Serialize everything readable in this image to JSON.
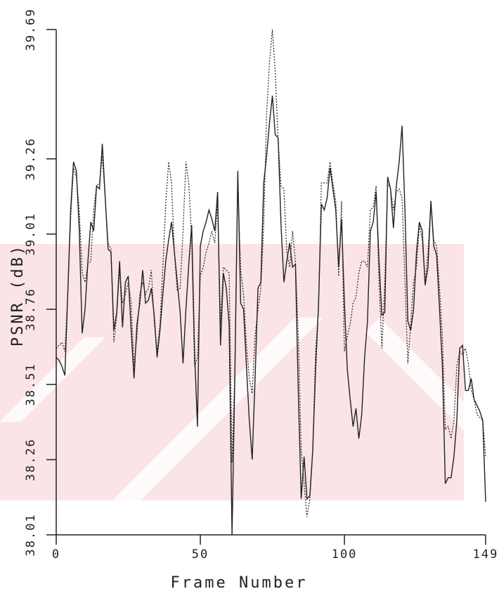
{
  "chart_data": {
    "type": "line",
    "xlabel": "Frame Number",
    "ylabel": "PSNR (dB)",
    "x": [
      0,
      1,
      2,
      3,
      4,
      5,
      6,
      7,
      8,
      9,
      10,
      11,
      12,
      13,
      14,
      15,
      16,
      17,
      18,
      19,
      20,
      21,
      22,
      23,
      24,
      25,
      26,
      27,
      28,
      29,
      30,
      31,
      32,
      33,
      34,
      35,
      36,
      37,
      38,
      39,
      40,
      41,
      42,
      43,
      44,
      45,
      46,
      47,
      48,
      49,
      50,
      51,
      52,
      53,
      54,
      55,
      56,
      57,
      58,
      59,
      60,
      61,
      62,
      63,
      64,
      65,
      66,
      67,
      68,
      69,
      70,
      71,
      72,
      73,
      74,
      75,
      76,
      77,
      78,
      79,
      80,
      81,
      82,
      83,
      84,
      85,
      86,
      87,
      88,
      89,
      90,
      91,
      92,
      93,
      94,
      95,
      96,
      97,
      98,
      99,
      100,
      101,
      102,
      103,
      104,
      105,
      106,
      107,
      108,
      109,
      110,
      111,
      112,
      113,
      114,
      115,
      116,
      117,
      118,
      119,
      120,
      121,
      122,
      123,
      124,
      125,
      126,
      127,
      128,
      129,
      130,
      131,
      132,
      133,
      134,
      135,
      136,
      137,
      138,
      139,
      140,
      141,
      142,
      143,
      144,
      145,
      146,
      147,
      148,
      149
    ],
    "series": [
      {
        "color": "#222222",
        "style": "solid",
        "values": [
          38.6,
          38.59,
          38.57,
          38.54,
          38.81,
          39.09,
          39.25,
          39.22,
          39.02,
          38.68,
          38.76,
          38.92,
          39.05,
          39.02,
          39.17,
          39.16,
          39.31,
          39.13,
          38.96,
          38.95,
          38.69,
          38.75,
          38.92,
          38.7,
          38.85,
          38.87,
          38.69,
          38.53,
          38.71,
          38.78,
          38.89,
          38.78,
          38.79,
          38.83,
          38.74,
          38.6,
          38.69,
          38.81,
          38.92,
          38.99,
          39.05,
          38.95,
          38.85,
          38.75,
          38.58,
          38.76,
          38.91,
          39.04,
          38.62,
          38.37,
          38.97,
          39.02,
          39.05,
          39.09,
          39.06,
          39.02,
          39.15,
          38.64,
          38.88,
          38.83,
          38.71,
          38.01,
          38.55,
          39.22,
          38.78,
          38.76,
          38.57,
          38.39,
          38.26,
          38.53,
          38.83,
          38.85,
          39.18,
          39.27,
          39.38,
          39.47,
          39.34,
          39.33,
          39.04,
          38.85,
          38.92,
          38.98,
          38.9,
          38.91,
          38.48,
          38.13,
          38.27,
          38.13,
          38.14,
          38.29,
          38.56,
          38.77,
          39.11,
          39.09,
          39.13,
          39.23,
          39.16,
          39.09,
          38.9,
          39.06,
          38.78,
          38.56,
          38.46,
          38.37,
          38.43,
          38.33,
          38.41,
          38.6,
          38.72,
          39.02,
          39.05,
          39.15,
          38.92,
          38.74,
          38.75,
          39.2,
          39.16,
          39.03,
          39.17,
          39.25,
          39.37,
          39.09,
          38.72,
          38.69,
          38.76,
          38.95,
          39.05,
          39.02,
          38.84,
          38.9,
          39.12,
          38.97,
          38.94,
          38.76,
          38.57,
          38.18,
          38.2,
          38.2,
          38.27,
          38.39,
          38.63,
          38.64,
          38.49,
          38.49,
          38.53,
          38.46,
          38.44,
          38.42,
          38.39,
          38.12
        ]
      },
      {
        "color": "#222222",
        "style": "dotted",
        "values": [
          38.63,
          38.64,
          38.65,
          38.62,
          38.81,
          39.06,
          39.23,
          39.2,
          39.09,
          38.88,
          38.85,
          38.91,
          38.92,
          39.09,
          39.17,
          39.18,
          39.27,
          39.13,
          38.98,
          38.96,
          38.65,
          38.74,
          38.89,
          38.78,
          38.81,
          38.85,
          38.78,
          38.57,
          38.67,
          38.81,
          38.85,
          38.81,
          38.83,
          38.89,
          38.72,
          38.62,
          38.71,
          38.9,
          39.11,
          39.25,
          39.18,
          38.95,
          38.82,
          38.83,
          39.02,
          39.25,
          39.18,
          38.99,
          38.57,
          38.6,
          38.87,
          38.9,
          38.95,
          38.98,
          39.02,
          38.98,
          39.11,
          38.71,
          38.9,
          38.89,
          38.88,
          38.25,
          38.56,
          39.19,
          38.89,
          38.81,
          38.64,
          38.53,
          38.48,
          38.67,
          38.76,
          38.83,
          39.04,
          39.41,
          39.58,
          39.69,
          39.55,
          39.32,
          39.17,
          39.16,
          38.95,
          38.9,
          39.02,
          38.92,
          38.67,
          38.29,
          38.18,
          38.07,
          38.13,
          38.29,
          38.62,
          38.76,
          39.18,
          39.18,
          39.18,
          39.25,
          39.18,
          39.12,
          38.87,
          39.12,
          38.62,
          38.67,
          38.71,
          38.78,
          38.8,
          38.88,
          38.92,
          38.92,
          38.9,
          39.09,
          39.1,
          39.17,
          38.85,
          38.63,
          38.85,
          39.18,
          39.16,
          39.09,
          39.15,
          39.16,
          39.13,
          38.85,
          38.58,
          38.71,
          38.85,
          38.9,
          39.04,
          38.99,
          38.85,
          38.95,
          39.12,
          38.99,
          38.97,
          38.83,
          38.67,
          38.36,
          38.37,
          38.33,
          38.39,
          38.57,
          38.62,
          38.61,
          38.63,
          38.58,
          38.49,
          38.46,
          38.41,
          38.4,
          38.39,
          38.27
        ]
      }
    ],
    "xlim": [
      0,
      149
    ],
    "xticks": [
      0,
      50,
      100,
      149
    ],
    "ylim": [
      38.01,
      39.69
    ],
    "yticks": [
      38.01,
      38.26,
      38.51,
      38.76,
      39.01,
      39.26,
      39.69
    ]
  }
}
